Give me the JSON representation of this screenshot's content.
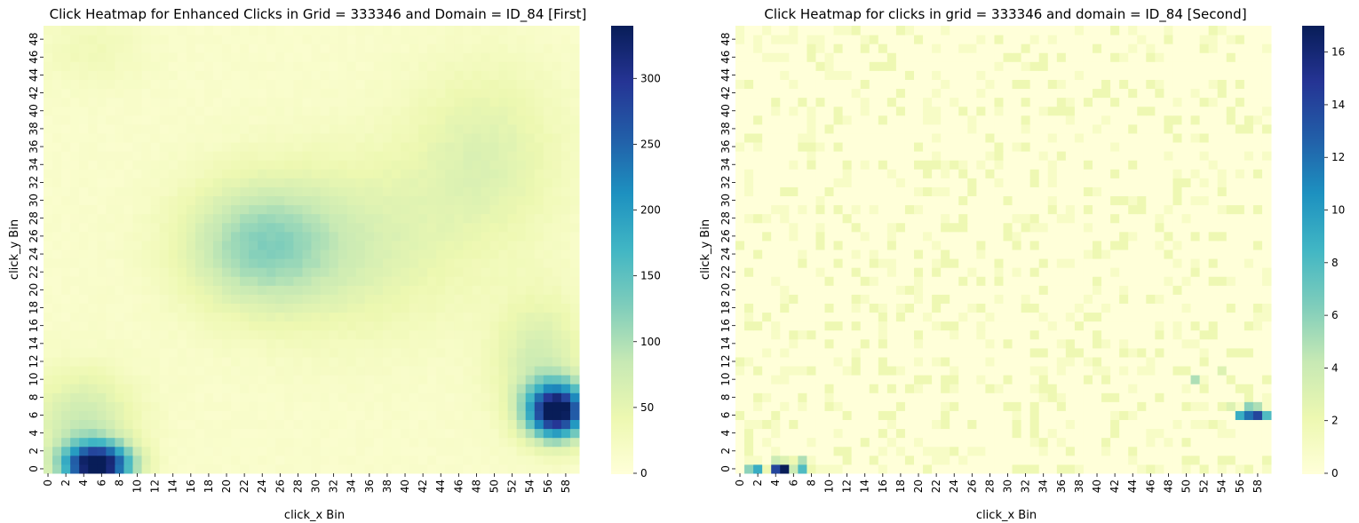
{
  "chart_data": [
    {
      "type": "heatmap",
      "title": "Click Heatmap for Enhanced Clicks in Grid = 333346 and Domain = ID_84 [First]",
      "xlabel": "click_x Bin",
      "ylabel": "click_y Bin",
      "x_bins": 60,
      "y_bins": 50,
      "x_tick_labels": [
        "0",
        "2",
        "4",
        "6",
        "8",
        "10",
        "12",
        "14",
        "16",
        "18",
        "20",
        "22",
        "24",
        "26",
        "28",
        "30",
        "32",
        "34",
        "36",
        "38",
        "40",
        "42",
        "44",
        "46",
        "48",
        "50",
        "52",
        "54",
        "56",
        "58"
      ],
      "y_tick_labels": [
        "0",
        "2",
        "4",
        "6",
        "8",
        "10",
        "12",
        "14",
        "16",
        "18",
        "20",
        "22",
        "24",
        "26",
        "28",
        "30",
        "32",
        "34",
        "36",
        "38",
        "40",
        "42",
        "44",
        "46",
        "48"
      ],
      "colormap": "YlGnBu",
      "vmin": 0,
      "vmax": 340,
      "colorbar_ticks": [
        "0",
        "50",
        "100",
        "150",
        "200",
        "250",
        "300"
      ],
      "hotspots": [
        {
          "x": 5.5,
          "y": 0.5,
          "peak": 340,
          "sx": 2.6,
          "sy": 1.6
        },
        {
          "x": 4,
          "y": 5,
          "peak": 70,
          "sx": 4,
          "sy": 4
        },
        {
          "x": 57,
          "y": 6.5,
          "peak": 340,
          "sx": 2.3,
          "sy": 2.1
        },
        {
          "x": 55,
          "y": 12,
          "peak": 60,
          "sx": 3.5,
          "sy": 5
        },
        {
          "x": 23.5,
          "y": 25,
          "peak": 95,
          "sx": 6,
          "sy": 5
        },
        {
          "x": 35,
          "y": 25,
          "peak": 45,
          "sx": 8,
          "sy": 7
        },
        {
          "x": 49,
          "y": 35,
          "peak": 45,
          "sx": 6,
          "sy": 7
        },
        {
          "x": 5,
          "y": 47,
          "peak": 20,
          "sx": 4,
          "sy": 3
        }
      ],
      "baseline": 14
    },
    {
      "type": "heatmap",
      "title": "Click Heatmap for clicks in grid = 333346 and domain = ID_84 [Second]",
      "xlabel": "click_x Bin",
      "ylabel": "click_y Bin",
      "x_bins": 60,
      "y_bins": 50,
      "x_tick_labels": [
        "0",
        "2",
        "4",
        "6",
        "8",
        "10",
        "12",
        "14",
        "16",
        "18",
        "20",
        "22",
        "24",
        "26",
        "28",
        "30",
        "32",
        "34",
        "36",
        "38",
        "40",
        "42",
        "44",
        "46",
        "48",
        "50",
        "52",
        "54",
        "56",
        "58"
      ],
      "y_tick_labels": [
        "0",
        "2",
        "4",
        "6",
        "8",
        "10",
        "12",
        "14",
        "16",
        "18",
        "20",
        "22",
        "24",
        "26",
        "28",
        "30",
        "32",
        "34",
        "36",
        "38",
        "40",
        "42",
        "44",
        "46",
        "48"
      ],
      "colormap": "YlGnBu",
      "vmin": 0,
      "vmax": 17,
      "colorbar_ticks": [
        "0",
        "2",
        "4",
        "6",
        "8",
        "10",
        "12",
        "14",
        "16"
      ],
      "cells": [
        {
          "x": 1,
          "y": 0,
          "v": 6
        },
        {
          "x": 2,
          "y": 0,
          "v": 9
        },
        {
          "x": 3,
          "y": 0,
          "v": 2
        },
        {
          "x": 4,
          "y": 0,
          "v": 14
        },
        {
          "x": 5,
          "y": 0,
          "v": 17
        },
        {
          "x": 6,
          "y": 0,
          "v": 4
        },
        {
          "x": 7,
          "y": 0,
          "v": 8
        },
        {
          "x": 8,
          "y": 0,
          "v": 2
        },
        {
          "x": 9,
          "y": 0,
          "v": 1
        },
        {
          "x": 10,
          "y": 0,
          "v": 1
        },
        {
          "x": 11,
          "y": 0,
          "v": 1
        },
        {
          "x": 1,
          "y": 1,
          "v": 1
        },
        {
          "x": 2,
          "y": 1,
          "v": 1
        },
        {
          "x": 4,
          "y": 1,
          "v": 4
        },
        {
          "x": 5,
          "y": 1,
          "v": 3
        },
        {
          "x": 6,
          "y": 1,
          "v": 2
        },
        {
          "x": 7,
          "y": 1,
          "v": 5
        },
        {
          "x": 8,
          "y": 1,
          "v": 1
        },
        {
          "x": 3,
          "y": 3,
          "v": 1
        },
        {
          "x": 4,
          "y": 4,
          "v": 1
        },
        {
          "x": 2,
          "y": 5,
          "v": 1
        },
        {
          "x": 4,
          "y": 6,
          "v": 2
        },
        {
          "x": 5,
          "y": 7,
          "v": 1
        },
        {
          "x": 3,
          "y": 8,
          "v": 1
        },
        {
          "x": 56,
          "y": 6,
          "v": 9
        },
        {
          "x": 57,
          "y": 6,
          "v": 12
        },
        {
          "x": 58,
          "y": 6,
          "v": 14
        },
        {
          "x": 59,
          "y": 6,
          "v": 8
        },
        {
          "x": 54,
          "y": 7,
          "v": 2
        },
        {
          "x": 55,
          "y": 7,
          "v": 3
        },
        {
          "x": 57,
          "y": 7,
          "v": 6
        },
        {
          "x": 58,
          "y": 7,
          "v": 5
        },
        {
          "x": 56,
          "y": 7,
          "v": 1
        },
        {
          "x": 52,
          "y": 7,
          "v": 1
        },
        {
          "x": 59,
          "y": 8,
          "v": 1
        },
        {
          "x": 51,
          "y": 10,
          "v": 5
        },
        {
          "x": 54,
          "y": 11,
          "v": 3
        },
        {
          "x": 55,
          "y": 13,
          "v": 2
        },
        {
          "x": 57,
          "y": 16,
          "v": 2
        },
        {
          "x": 5,
          "y": 48,
          "v": 1
        },
        {
          "x": 6,
          "y": 49,
          "v": 1
        },
        {
          "x": 5,
          "y": 46,
          "v": 1
        }
      ],
      "noise_density": 0.22,
      "noise_max": 2
    }
  ]
}
